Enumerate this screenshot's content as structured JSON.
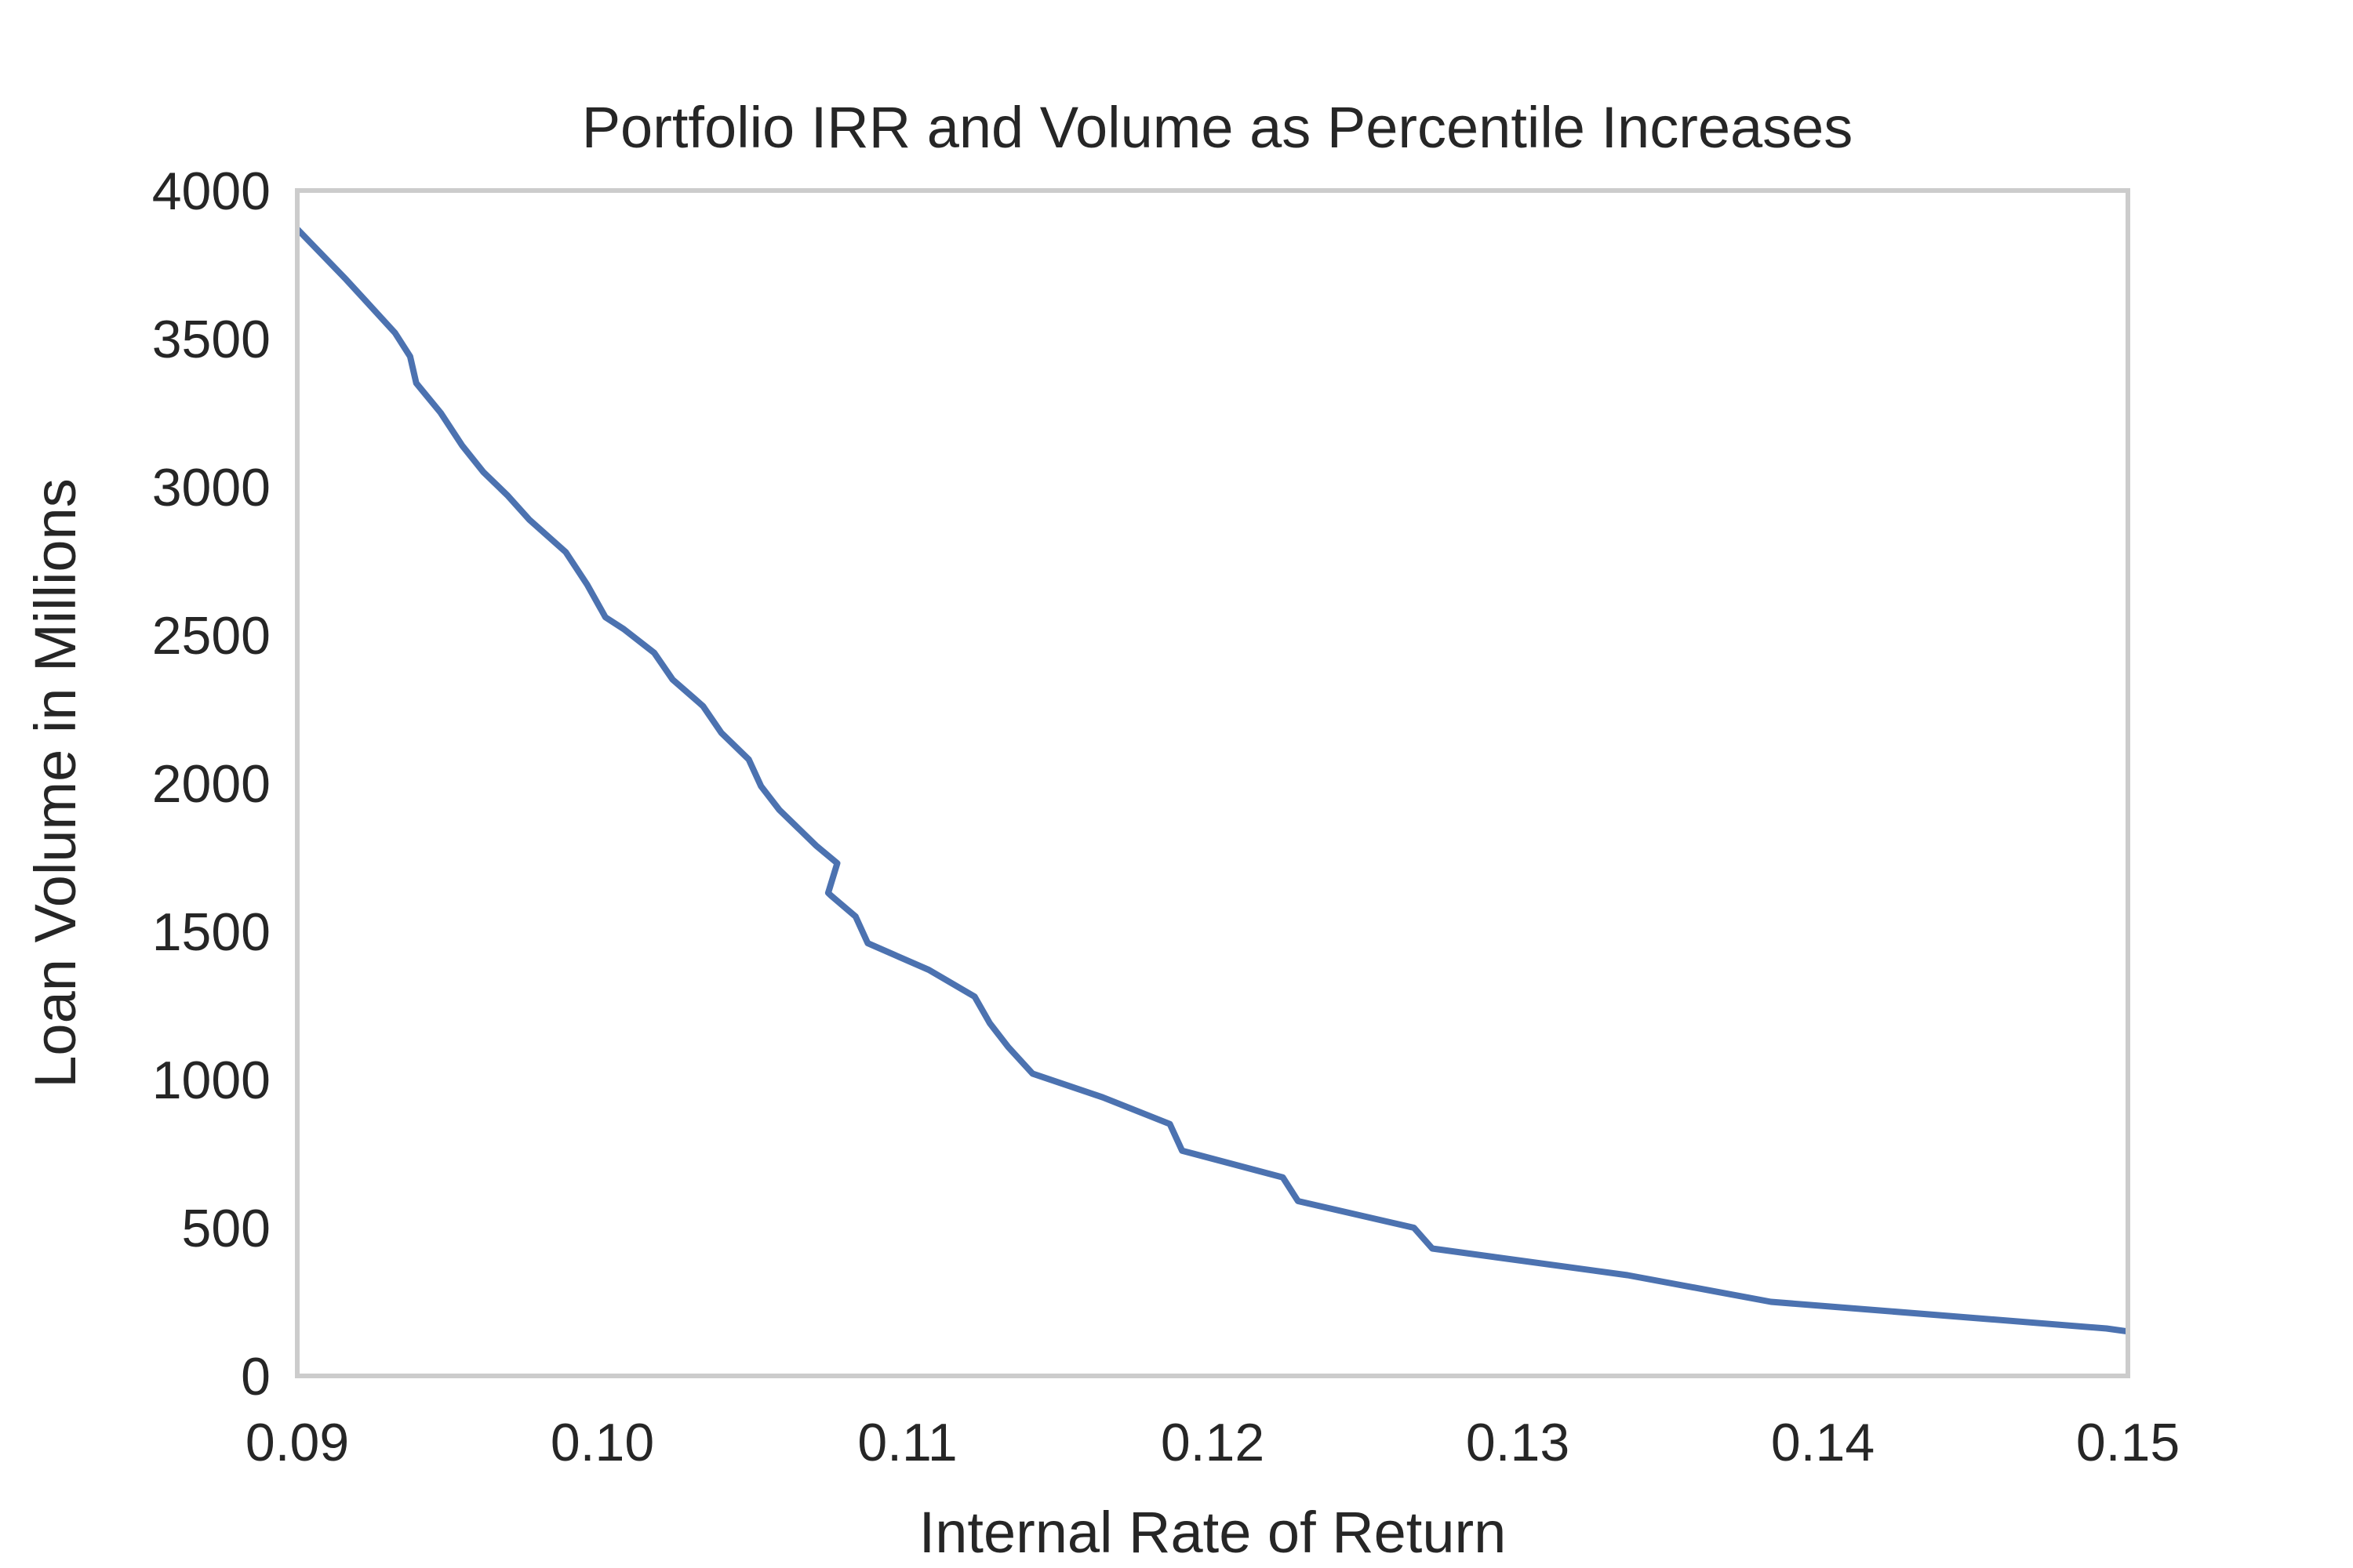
{
  "chart_data": {
    "type": "line",
    "title": "Portfolio IRR and Volume as Percentile Increases",
    "xlabel": "Internal Rate of Return",
    "ylabel": "Loan Volume in Millions",
    "xlim": [
      0.09,
      0.15
    ],
    "ylim": [
      0,
      4000
    ],
    "xticks": [
      "0.09",
      "0.10",
      "0.11",
      "0.12",
      "0.13",
      "0.14",
      "0.15"
    ],
    "yticks": [
      "0",
      "500",
      "1000",
      "1500",
      "2000",
      "2500",
      "3000",
      "3500",
      "4000"
    ],
    "grid": false,
    "line_color": "#4c72b0",
    "frame_color": "#cccccc",
    "series": [
      {
        "x": [
          0.09,
          0.0916,
          0.0924,
          0.0932,
          0.0937,
          0.0939,
          0.0947,
          0.0954,
          0.0961,
          0.0969,
          0.0976,
          0.0988,
          0.0995,
          0.1001,
          0.1007,
          0.1017,
          0.1023,
          0.1033,
          0.1039,
          0.1048,
          0.1052,
          0.1058,
          0.1064,
          0.107,
          0.1077,
          0.1074,
          0.1075,
          0.1083,
          0.1087,
          0.1107,
          0.1122,
          0.1127,
          0.1133,
          0.1141,
          0.1164,
          0.1186,
          0.119,
          0.1223,
          0.1228,
          0.1266,
          0.1272,
          0.1336,
          0.1383,
          0.1493,
          0.15
        ],
        "y": [
          3870,
          3700,
          3610,
          3520,
          3440,
          3350,
          3250,
          3140,
          3050,
          2970,
          2890,
          2780,
          2670,
          2560,
          2520,
          2440,
          2350,
          2260,
          2170,
          2080,
          1990,
          1910,
          1850,
          1790,
          1730,
          1630,
          1620,
          1550,
          1460,
          1370,
          1280,
          1190,
          1110,
          1020,
          940,
          850,
          760,
          670,
          590,
          500,
          430,
          340,
          250,
          160,
          150
        ]
      }
    ]
  }
}
